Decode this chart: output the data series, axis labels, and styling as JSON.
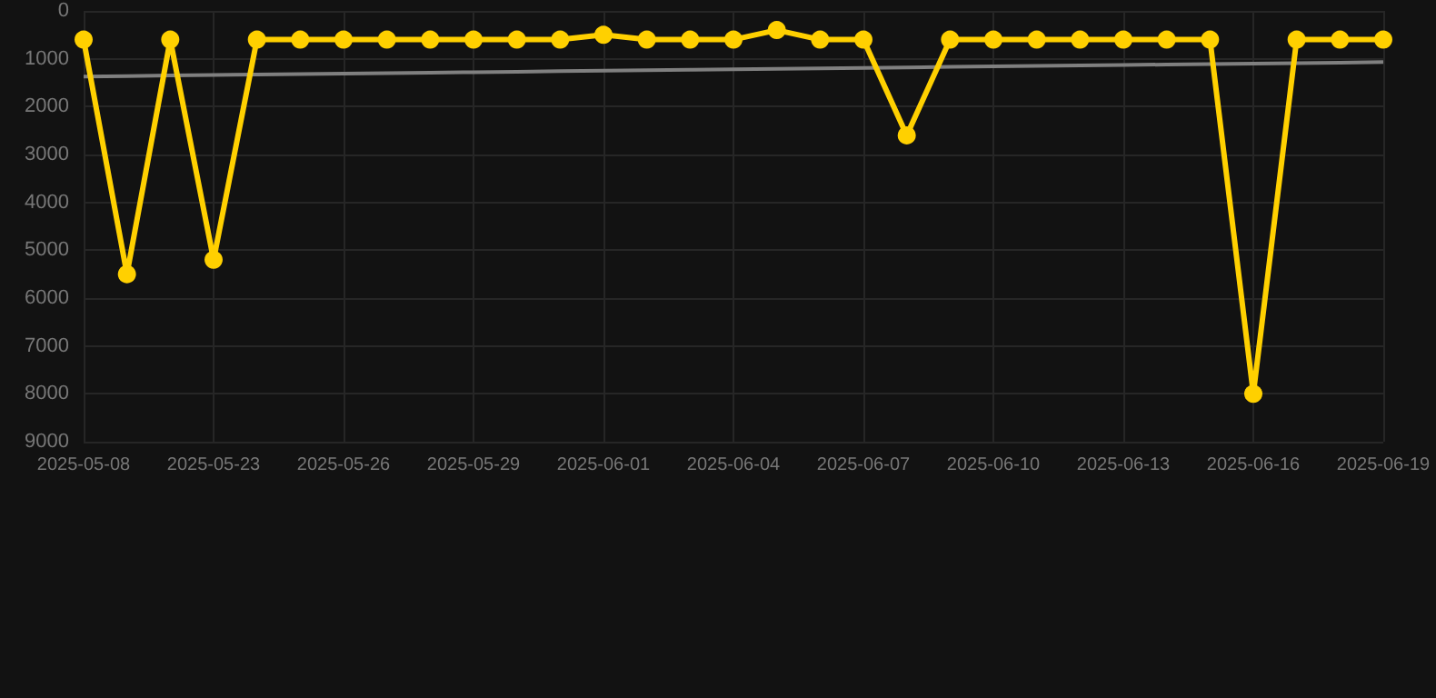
{
  "chart_data": {
    "type": "line",
    "categories": [
      "2025-05-08",
      null,
      null,
      "2025-05-23",
      null,
      null,
      "2025-05-26",
      null,
      null,
      "2025-05-29",
      null,
      null,
      "2025-06-01",
      null,
      null,
      "2025-06-04",
      null,
      null,
      "2025-06-07",
      null,
      null,
      "2025-06-10",
      null,
      null,
      "2025-06-13",
      null,
      null,
      "2025-06-16",
      null,
      null,
      "2025-06-19"
    ],
    "series": [
      {
        "color": "#ffd000",
        "values": [
          600,
          5500,
          600,
          5200,
          600,
          600,
          600,
          600,
          600,
          600,
          600,
          600,
          500,
          600,
          600,
          600,
          400,
          600,
          600,
          2600,
          600,
          600,
          600,
          600,
          600,
          600,
          600,
          8000,
          600,
          600,
          600
        ]
      },
      {
        "type": "line",
        "color": "#808080",
        "marker": "none",
        "values": [
          1370,
          1360,
          1350,
          1340,
          1330,
          1320,
          1310,
          1300,
          1290,
          1280,
          1270,
          1260,
          1250,
          1240,
          1230,
          1220,
          1210,
          1200,
          1190,
          1180,
          1170,
          1160,
          1150,
          1140,
          1130,
          1120,
          1110,
          1100,
          1090,
          1080,
          1070
        ]
      }
    ],
    "ylim": [
      9000,
      0
    ],
    "yticks": [
      0,
      1000,
      2000,
      3000,
      4000,
      5000,
      6000,
      7000,
      8000,
      9000
    ],
    "grid": true,
    "marker": "circle",
    "line_style": "solid"
  }
}
